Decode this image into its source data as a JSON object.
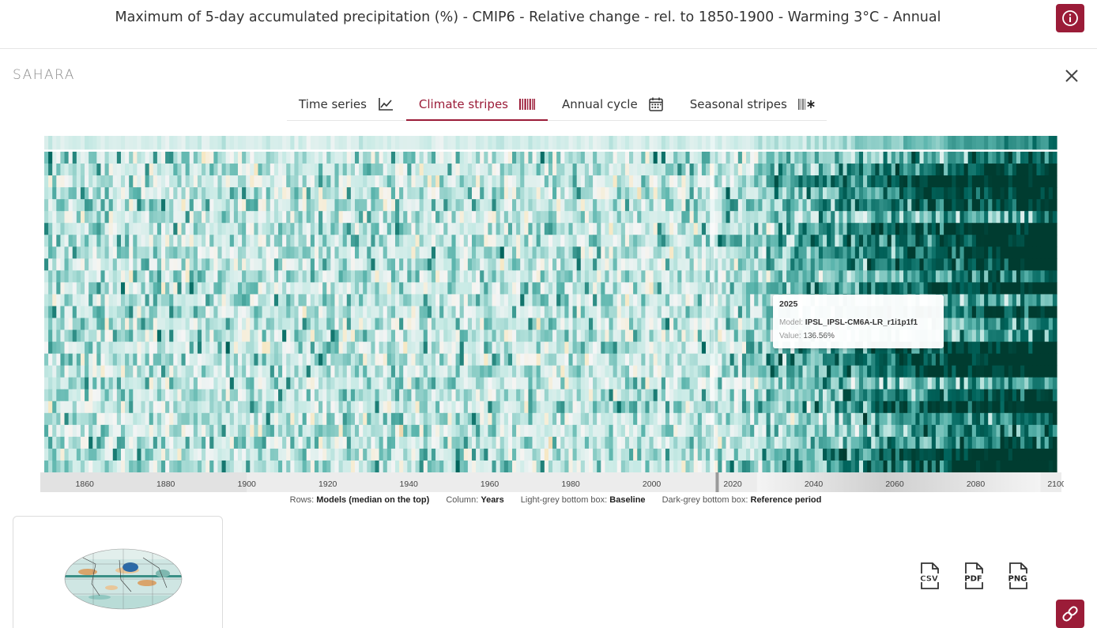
{
  "header": {
    "title": "Maximum of 5-day accumulated precipitation (%) - CMIP6 - Relative change - rel. to 1850-1900 - Warming 3°C - Annual",
    "info_icon": "info-icon"
  },
  "region": {
    "name": "SAHARA",
    "close_icon": "close-icon"
  },
  "tabs": [
    {
      "label": "Time series",
      "icon": "line-chart-icon",
      "active": false
    },
    {
      "label": "Climate stripes",
      "icon": "stripes-icon",
      "active": true
    },
    {
      "label": "Annual cycle",
      "icon": "calendar-icon",
      "active": false
    },
    {
      "label": "Seasonal stripes",
      "icon": "seasonal-stripes-icon",
      "active": false
    }
  ],
  "colors": {
    "accent": "#9b1c38",
    "dry": "#c8884a",
    "wet": "#01473d",
    "neutral": "#f5f5f5"
  },
  "chart_data": {
    "type": "heatmap",
    "x_label": "Years",
    "y_label": "Models (median on the top)",
    "x_range": [
      1850,
      2100
    ],
    "x_ticks": [
      "1860",
      "1880",
      "1900",
      "1920",
      "1940",
      "1960",
      "1980",
      "2000",
      "2020",
      "2040",
      "2060",
      "2080",
      "2100"
    ],
    "rows": 28,
    "marker_year": 2015,
    "baseline_period": [
      1850,
      1900
    ],
    "reference_period": [
      2015,
      2021
    ],
    "colormap": [
      "#8c510a",
      "#c8884a",
      "#f6e8c3",
      "#f5f5f5",
      "#c7eae5",
      "#5ab4ac",
      "#01665e",
      "#003c30"
    ]
  },
  "legend": {
    "rows_label": "Rows:",
    "rows_value": "Models (median on the top)",
    "columns_label": "Column:",
    "columns_value": "Years",
    "baseline_label": "Light-grey bottom box:",
    "baseline_value": "Baseline",
    "reference_label": "Dark-grey bottom box:",
    "reference_value": "Reference period"
  },
  "tooltip": {
    "year": "2025",
    "model_label": "Model:",
    "model_value": "IPSL_IPSL-CM6A-LR_r1i1p1f1",
    "value_label": "Value:",
    "value_value": "136.56%"
  },
  "downloads": [
    {
      "label": "CSV",
      "icon": "csv-file-icon"
    },
    {
      "label": "PDF",
      "icon": "pdf-file-icon"
    },
    {
      "label": "PNG",
      "icon": "png-file-icon"
    }
  ],
  "map_thumbnail": {
    "icon": "world-map-icon"
  },
  "link_icon": "link-icon"
}
